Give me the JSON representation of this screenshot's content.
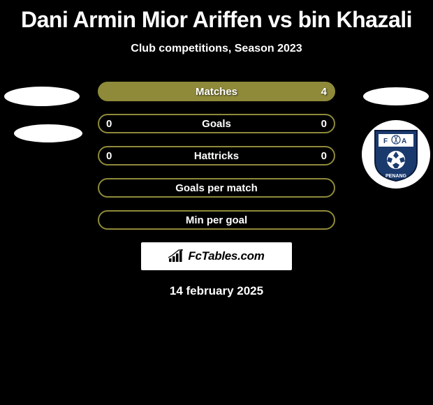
{
  "title": "Dani Armin Mior Ariffen vs bin Khazali",
  "subtitle": "Club competitions, Season 2023",
  "date": "14 february 2025",
  "brand": "FcTables.com",
  "colors": {
    "border": "#8f8a3a",
    "fill_highlight": "#8f8a3a"
  },
  "rows": [
    {
      "label": "Matches",
      "left": "",
      "right": "4",
      "fill": "full"
    },
    {
      "label": "Goals",
      "left": "0",
      "right": "0",
      "fill": "none"
    },
    {
      "label": "Hattricks",
      "left": "0",
      "right": "0",
      "fill": "none"
    },
    {
      "label": "Goals per match",
      "left": "",
      "right": "",
      "fill": "none"
    },
    {
      "label": "Min per goal",
      "left": "",
      "right": "",
      "fill": "none"
    }
  ]
}
